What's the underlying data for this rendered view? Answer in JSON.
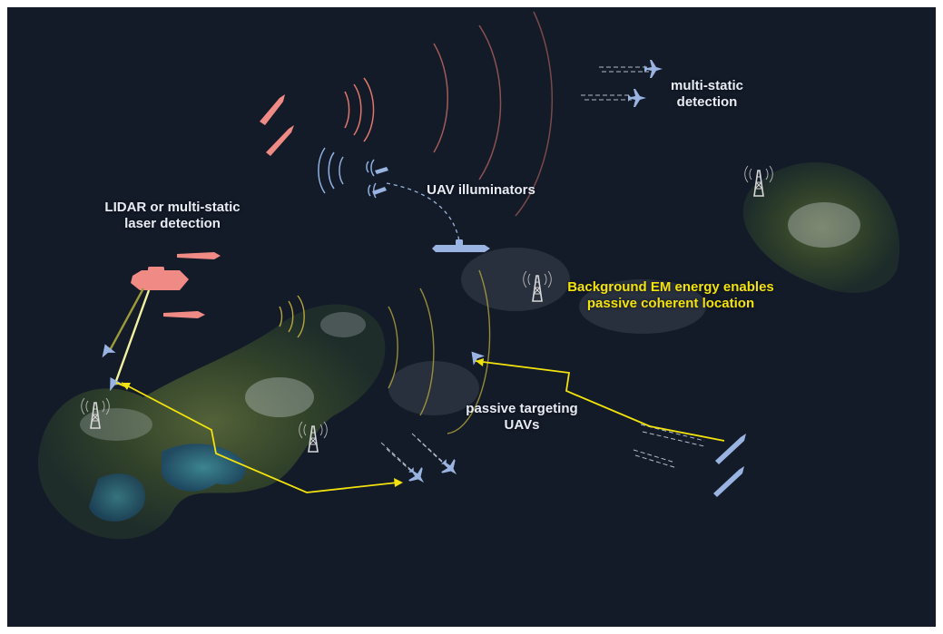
{
  "labels": {
    "multistatic": [
      "multi-static",
      "detection"
    ],
    "uav_illuminators": "UAV illuminators",
    "lidar": [
      "LIDAR or multi-static",
      "laser detection"
    ],
    "background_em": [
      "Background EM energy enables",
      "passive coherent location"
    ],
    "passive_targeting": [
      "passive targeting",
      "UAVs"
    ]
  },
  "colors": {
    "ocean": "#131a28",
    "hostile": "#f08a84",
    "friendly": "#9ab4e2",
    "signal_yellow": "#f2e20d",
    "wave_red": "#e0776c",
    "wave_blue": "#8fb0e0",
    "wave_olive": "#b8a83a"
  },
  "icons": [
    "radio-tower-icon",
    "fighter-jet-icon",
    "uav-icon",
    "warship-icon",
    "submarine-icon",
    "lightning-link-icon"
  ]
}
